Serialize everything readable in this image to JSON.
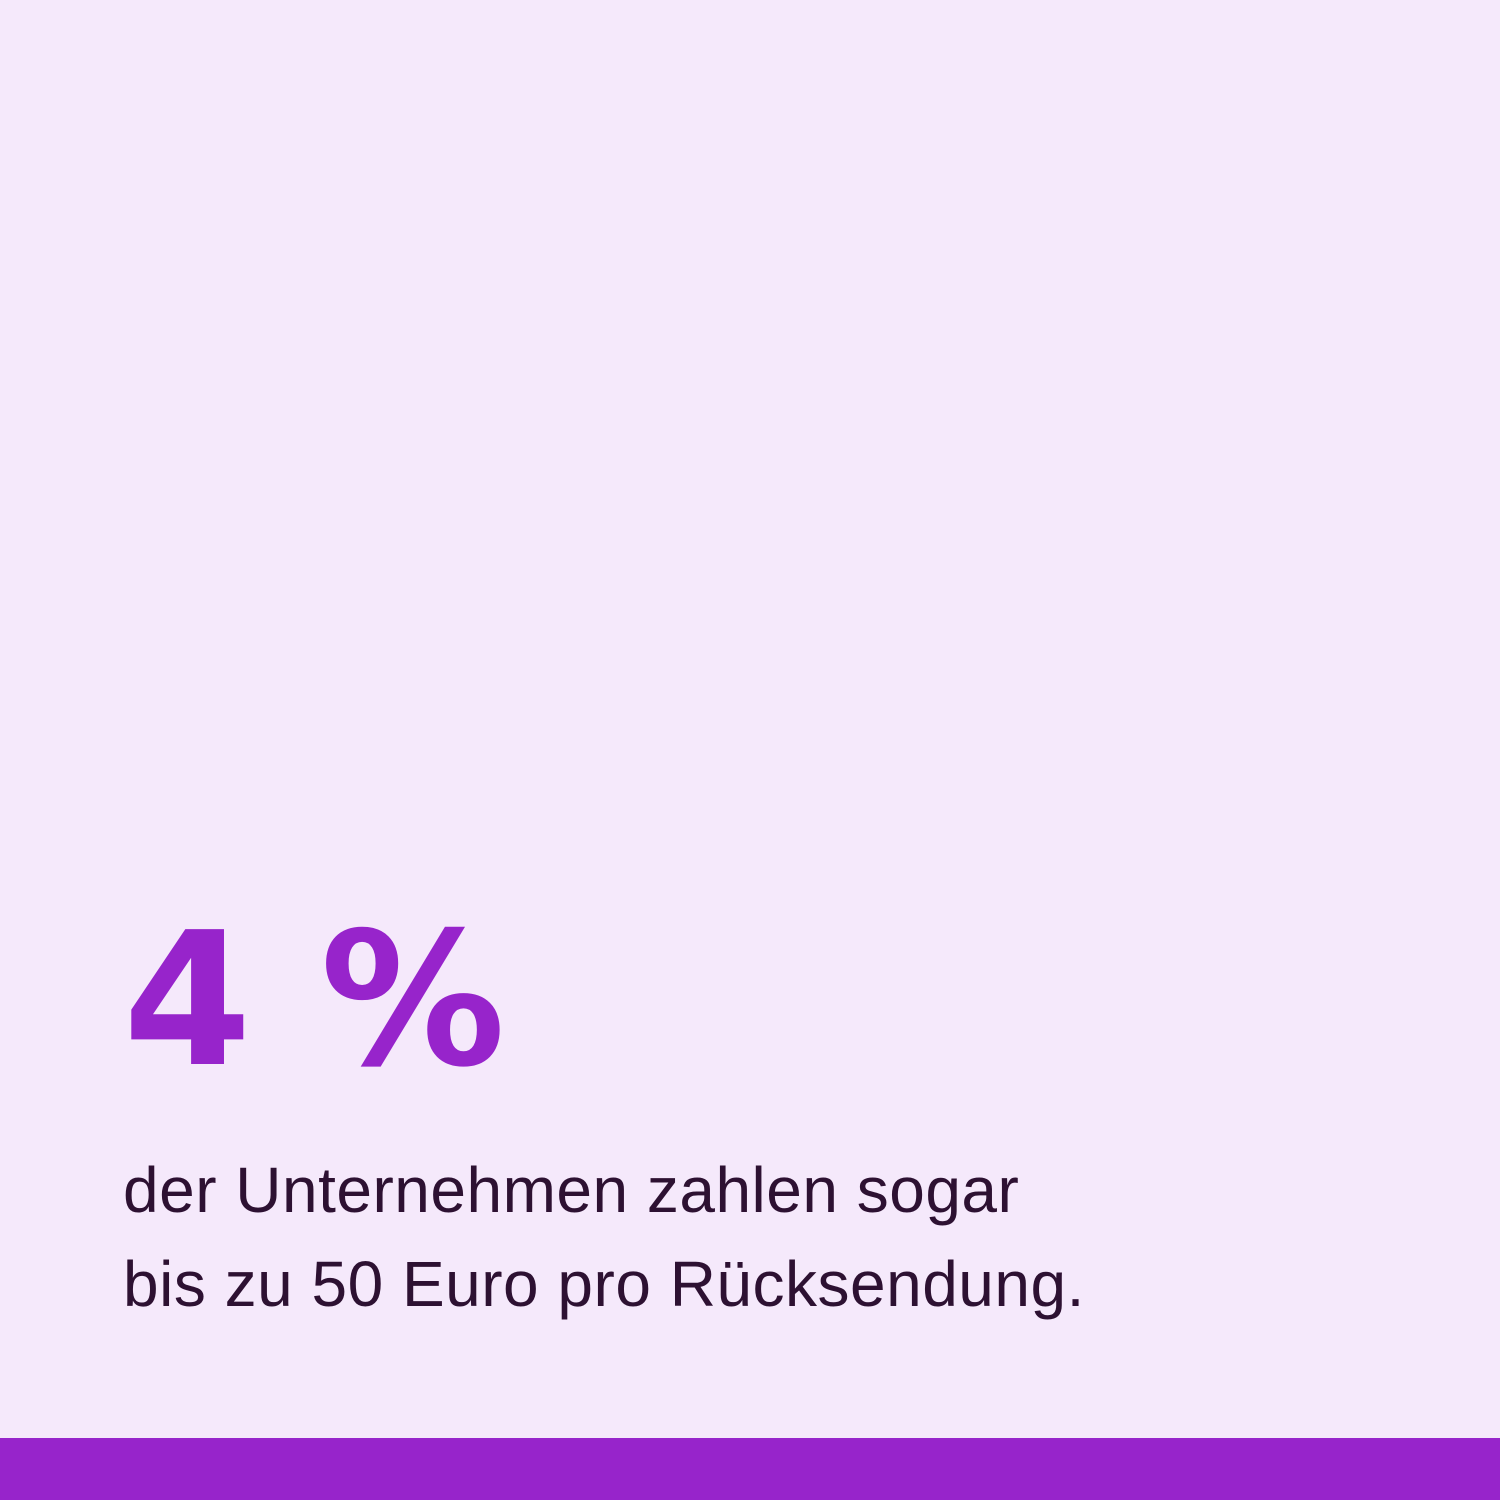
{
  "colors": {
    "background": "#f5e9fb",
    "accent": "#9724cb",
    "text_dark": "#2d1132"
  },
  "stat": {
    "value": "4 %"
  },
  "description": {
    "line1": "der Unternehmen zahlen sogar",
    "line2": "bis zu 50 Euro pro Rücksendung."
  }
}
